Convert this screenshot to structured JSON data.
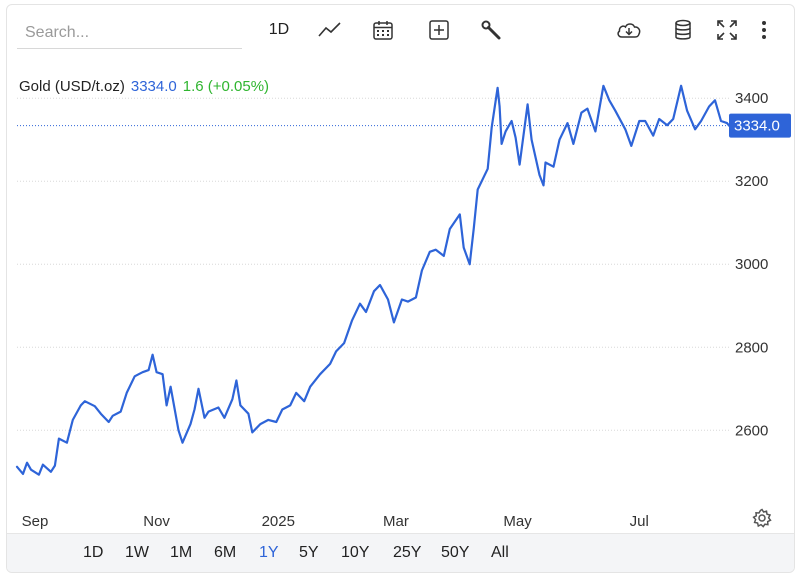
{
  "toolbar": {
    "search_placeholder": "Search...",
    "interval_label": "1D",
    "icons": [
      "line-chart-icon",
      "calendar-icon",
      "plus-box-icon",
      "wrench-icon",
      "cloud-download-icon",
      "database-icon",
      "fullscreen-icon",
      "more-vertical-icon"
    ]
  },
  "legend": {
    "name": "Gold (USD/t.oz)",
    "price": "3334.0",
    "change": "1.6 (+0.05%)"
  },
  "price_tag": "3334.0",
  "range": {
    "buttons": [
      "1D",
      "1W",
      "1M",
      "6M",
      "1Y",
      "5Y",
      "10Y",
      "25Y",
      "50Y",
      "All"
    ],
    "active": "1Y"
  },
  "colors": {
    "line": "#2e64d8",
    "change_positive": "#2fb52f",
    "accent": "#2e64d8"
  },
  "chart_data": {
    "type": "line",
    "title": "",
    "xlabel": "",
    "ylabel": "",
    "x_ticks": [
      "Sep",
      "Nov",
      "2025",
      "Mar",
      "May",
      "Jul"
    ],
    "y_ticks": [
      2600,
      2800,
      3000,
      3200,
      3400
    ],
    "ylim": [
      2420,
      3480
    ],
    "xlim": [
      "2024-08-23",
      "2025-08-15"
    ],
    "grid": true,
    "last_price": 3334.0,
    "series": [
      {
        "x": [
          "2024-08-23",
          "2024-08-26",
          "2024-08-28",
          "2024-08-30",
          "2024-09-03",
          "2024-09-05",
          "2024-09-09",
          "2024-09-11",
          "2024-09-13",
          "2024-09-17",
          "2024-09-20",
          "2024-09-24",
          "2024-09-26",
          "2024-10-01",
          "2024-10-04",
          "2024-10-08",
          "2024-10-10",
          "2024-10-14",
          "2024-10-17",
          "2024-10-21",
          "2024-10-23",
          "2024-10-25",
          "2024-10-28",
          "2024-10-30",
          "2024-11-01",
          "2024-11-04",
          "2024-11-06",
          "2024-11-08",
          "2024-11-12",
          "2024-11-14",
          "2024-11-18",
          "2024-11-20",
          "2024-11-22",
          "2024-11-25",
          "2024-11-27",
          "2024-12-02",
          "2024-12-05",
          "2024-12-09",
          "2024-12-11",
          "2024-12-13",
          "2024-12-17",
          "2024-12-19",
          "2024-12-23",
          "2024-12-27",
          "2024-12-31",
          "2025-01-03",
          "2025-01-07",
          "2025-01-10",
          "2025-01-14",
          "2025-01-17",
          "2025-01-22",
          "2025-01-27",
          "2025-01-30",
          "2025-02-03",
          "2025-02-07",
          "2025-02-11",
          "2025-02-14",
          "2025-02-18",
          "2025-02-21",
          "2025-02-25",
          "2025-02-28",
          "2025-03-04",
          "2025-03-07",
          "2025-03-11",
          "2025-03-14",
          "2025-03-18",
          "2025-03-21",
          "2025-03-25",
          "2025-03-28",
          "2025-04-02",
          "2025-04-04",
          "2025-04-07",
          "2025-04-09",
          "2025-04-11",
          "2025-04-16",
          "2025-04-18",
          "2025-04-21",
          "2025-04-22",
          "2025-04-23",
          "2025-04-25",
          "2025-04-28",
          "2025-04-30",
          "2025-05-02",
          "2025-05-06",
          "2025-05-08",
          "2025-05-12",
          "2025-05-14",
          "2025-05-15",
          "2025-05-19",
          "2025-05-22",
          "2025-05-26",
          "2025-05-29",
          "2025-06-02",
          "2025-06-05",
          "2025-06-09",
          "2025-06-13",
          "2025-06-16",
          "2025-06-19",
          "2025-06-24",
          "2025-06-27",
          "2025-07-01",
          "2025-07-04",
          "2025-07-08",
          "2025-07-11",
          "2025-07-15",
          "2025-07-18",
          "2025-07-22",
          "2025-07-25",
          "2025-07-29",
          "2025-08-01",
          "2025-08-05",
          "2025-08-08",
          "2025-08-11",
          "2025-08-14",
          "2025-08-15"
        ],
        "values": [
          2512,
          2495,
          2522,
          2505,
          2493,
          2517,
          2500,
          2515,
          2580,
          2570,
          2625,
          2660,
          2670,
          2658,
          2640,
          2620,
          2635,
          2645,
          2690,
          2730,
          2735,
          2740,
          2745,
          2782,
          2740,
          2735,
          2660,
          2705,
          2600,
          2570,
          2615,
          2650,
          2700,
          2630,
          2645,
          2655,
          2630,
          2675,
          2720,
          2660,
          2640,
          2595,
          2615,
          2625,
          2620,
          2650,
          2660,
          2690,
          2670,
          2705,
          2735,
          2760,
          2790,
          2810,
          2865,
          2905,
          2885,
          2935,
          2950,
          2915,
          2860,
          2915,
          2910,
          2920,
          2985,
          3030,
          3035,
          3020,
          3085,
          3120,
          3040,
          3000,
          3085,
          3180,
          3230,
          3330,
          3425,
          3380,
          3290,
          3320,
          3345,
          3305,
          3240,
          3385,
          3300,
          3215,
          3190,
          3245,
          3235,
          3300,
          3340,
          3290,
          3365,
          3375,
          3320,
          3430,
          3395,
          3370,
          3325,
          3285,
          3345,
          3345,
          3310,
          3350,
          3335,
          3350,
          3430,
          3370,
          3325,
          3345,
          3380,
          3395,
          3345,
          3340,
          3334
        ]
      }
    ]
  }
}
